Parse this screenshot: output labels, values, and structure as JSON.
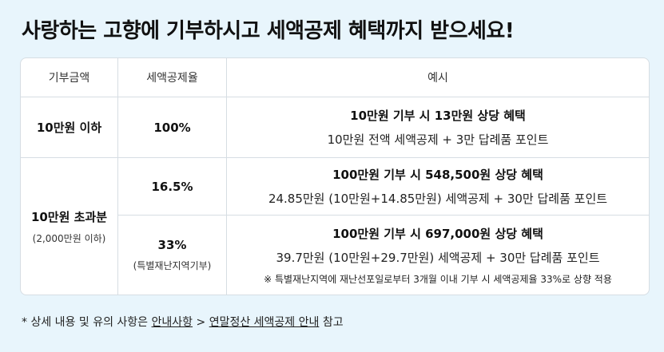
{
  "title": "사랑하는 고향에 기부하시고 세액공제 혜택까지 받으세요!",
  "table": {
    "headers": [
      "기부금액",
      "세액공제율",
      "예시"
    ],
    "row1": {
      "amount": "10만원 이하",
      "rate": "100%",
      "example_title": "10만원 기부 시 13만원 상당 혜택",
      "example_desc": "10만원 전액 세액공제 + 3만 답례품 포인트"
    },
    "row2": {
      "amount": "10만원 초과분",
      "amount_sub": "(2,000만원 이하)",
      "sub1": {
        "rate": "16.5%",
        "example_title": "100만원 기부 시 548,500원 상당 혜택",
        "example_desc": "24.85만원 (10만원+14.85만원) 세액공제 + 30만 답례품 포인트"
      },
      "sub2": {
        "rate": "33%",
        "rate_sub": "(특별재난지역기부)",
        "example_title": "100만원 기부 시 697,000원 상당 혜택",
        "example_desc": "39.7만원 (10만원+29.7만원) 세액공제 + 30만 답례품 포인트",
        "example_note": "※ 특별재난지역에 재난선포일로부터 3개월 이내 기부 시 세액공제율 33%로 상향 적용"
      }
    }
  },
  "footnote": {
    "prefix": "* 상세 내용 및 유의 사항은 ",
    "link1": "안내사항",
    "separator": " > ",
    "link2": "연말정산 세액공제 안내",
    "suffix": " 참고"
  }
}
